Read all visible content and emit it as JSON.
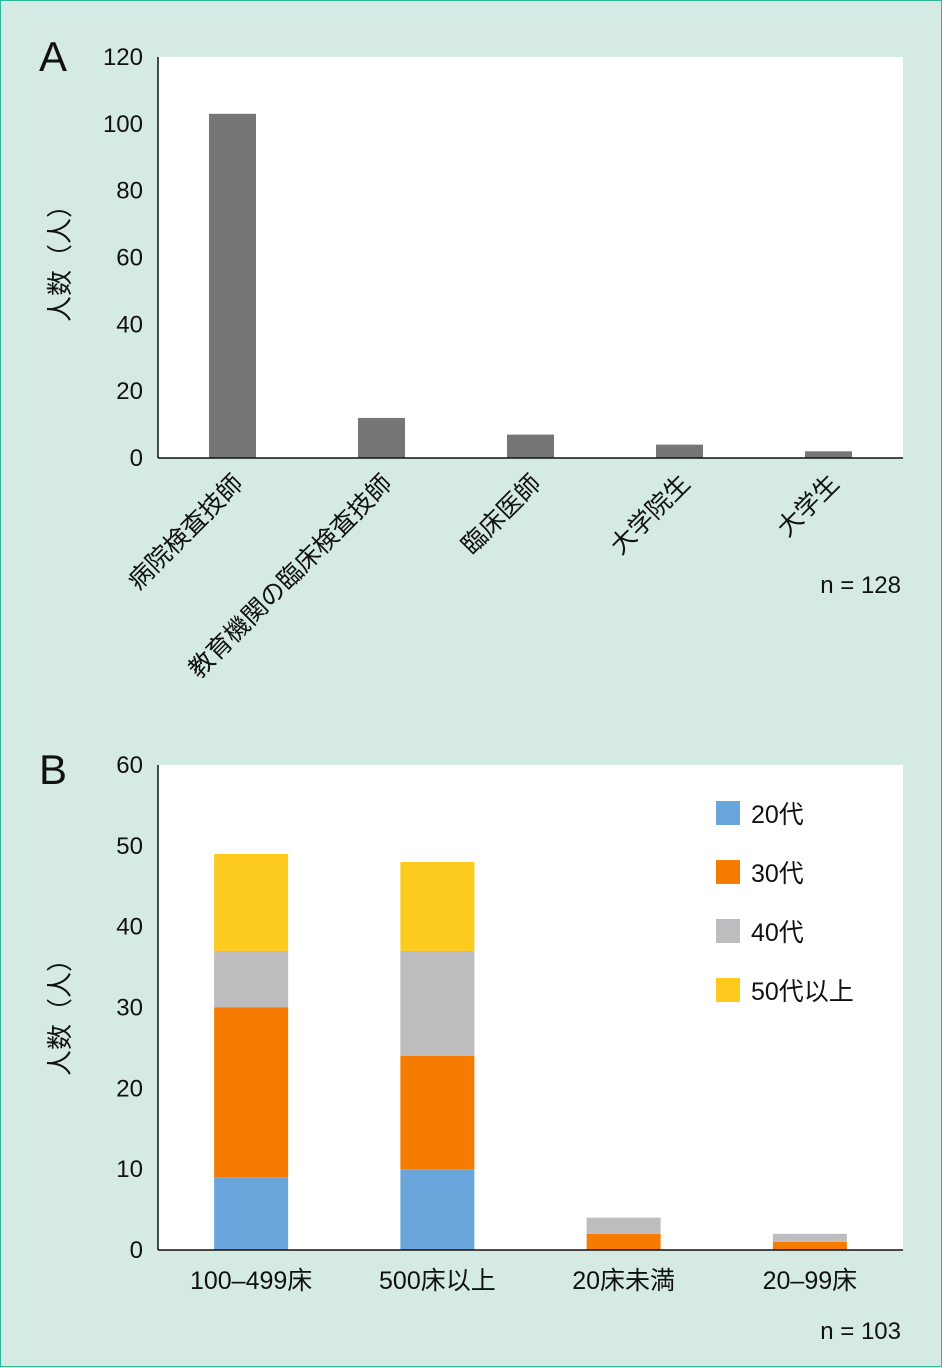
{
  "chart_data": [
    {
      "panel": "A",
      "type": "bar",
      "categories": [
        "病院検査技師",
        "教育機関の臨床検査技師",
        "臨床医師",
        "大学院生",
        "大学生"
      ],
      "values": [
        103,
        12,
        7,
        4,
        2
      ],
      "ylabel": "人数（人）",
      "ylim": [
        0,
        120
      ],
      "yticks": [
        0,
        20,
        40,
        60,
        80,
        100,
        120
      ],
      "note": "n = 128",
      "bar_color": "#767676"
    },
    {
      "panel": "B",
      "type": "bar",
      "stacked": true,
      "categories": [
        "100–499床",
        "500床以上",
        "20床未満",
        "20–99床"
      ],
      "series": [
        {
          "name": "20代",
          "values": [
            9,
            10,
            0,
            0
          ],
          "color": "#6aa6dc"
        },
        {
          "name": "30代",
          "values": [
            21,
            14,
            2,
            1
          ],
          "color": "#f57c00"
        },
        {
          "name": "40代",
          "values": [
            7,
            13,
            2,
            1
          ],
          "color": "#bdbdbf"
        },
        {
          "name": "50代以上",
          "values": [
            12,
            11,
            0,
            0
          ],
          "color": "#fdca1e"
        }
      ],
      "ylabel": "人数（人）",
      "ylim": [
        0,
        60
      ],
      "yticks": [
        0,
        10,
        20,
        30,
        40,
        50,
        60
      ],
      "legend_position": "top-right",
      "note": "n = 103"
    }
  ]
}
